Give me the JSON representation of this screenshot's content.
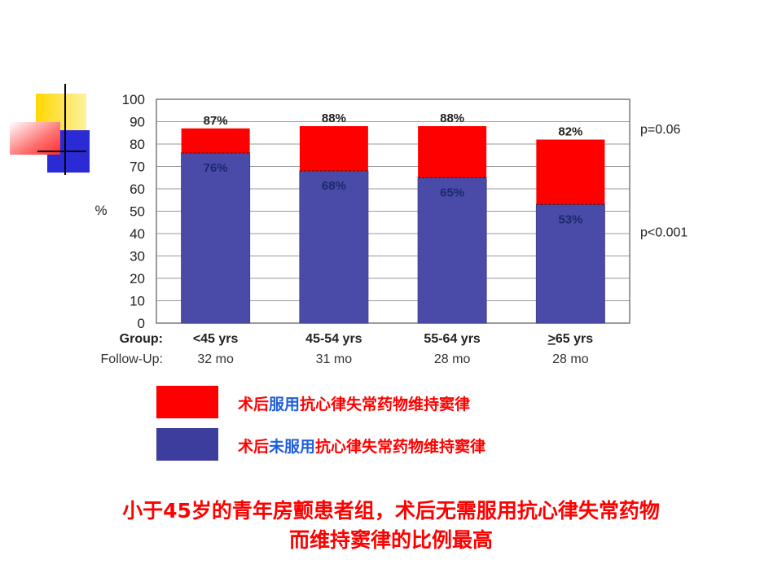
{
  "chart_data": {
    "type": "bar",
    "stacked": true,
    "ylabel": "%",
    "ylim": [
      0,
      100
    ],
    "yticks": [
      0,
      10,
      20,
      30,
      40,
      50,
      60,
      70,
      80,
      90,
      100
    ],
    "grid": true,
    "group_row_label": "Group:",
    "followup_row_label": "Follow-Up:",
    "categories": [
      "<45 yrs",
      "45-54 yrs",
      "55-64 yrs",
      "≥65 yrs"
    ],
    "followup": [
      "32 mo",
      "31 mo",
      "28 mo",
      "28 mo"
    ],
    "series": [
      {
        "values": [
          76,
          68,
          65,
          53
        ],
        "labels": [
          "76%",
          "68%",
          "65%",
          "53%"
        ],
        "color": "#4a4aa8"
      },
      {
        "values": [
          11,
          20,
          23,
          29
        ],
        "color": "#ff0000"
      }
    ],
    "totals": [
      87,
      88,
      88,
      82
    ],
    "total_labels": [
      "87%",
      "88%",
      "88%",
      "82%"
    ],
    "annotations": [
      {
        "text": "p=0.06",
        "y": 87
      },
      {
        "text": "p<0.001",
        "y": 41
      }
    ]
  },
  "legend": [
    {
      "color": "#ff0000",
      "parts": [
        {
          "text": "术后",
          "color": "red"
        },
        {
          "text": "服用",
          "color": "blue"
        },
        {
          "text": "抗心律失常药物维持窦律",
          "color": "red"
        }
      ]
    },
    {
      "color": "#3d3d9e",
      "parts": [
        {
          "text": "术后",
          "color": "red"
        },
        {
          "text": "未服用",
          "color": "blue"
        },
        {
          "text": "抗心律失常药物维持窦律",
          "color": "red"
        }
      ]
    }
  ],
  "conclusion": {
    "line1": "小于45岁的青年房颤患者组，术后无需服用抗心律失常药物",
    "line2": "而维持窦律的比例最高"
  }
}
